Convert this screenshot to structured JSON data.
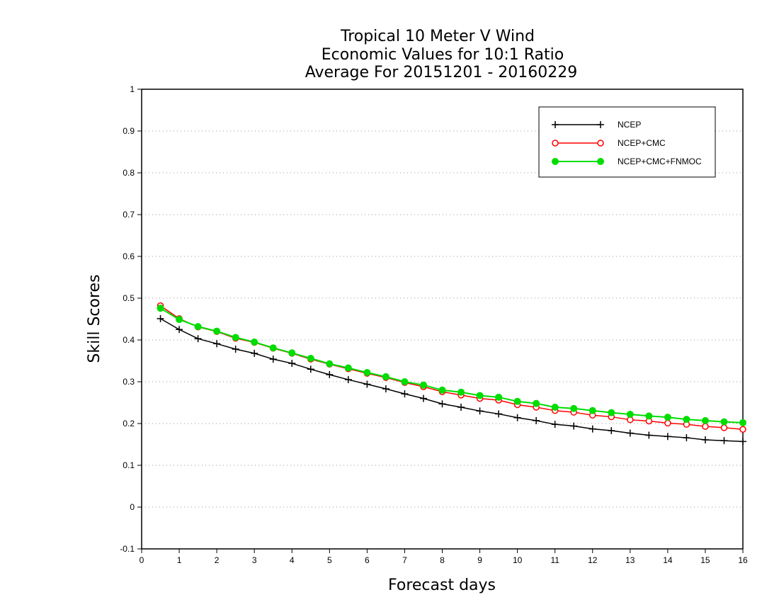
{
  "chart_data": {
    "type": "line",
    "title_lines": [
      "Tropical 10 Meter V Wind",
      "Economic Values for 10:1 Ratio",
      "Average For 20151201 - 20160229"
    ],
    "xlabel": "Forecast days",
    "ylabel": "Skill Scores",
    "xlim": [
      0,
      16
    ],
    "ylim": [
      -0.1,
      1
    ],
    "x_ticks": [
      "0",
      "1",
      "2",
      "3",
      "4",
      "5",
      "6",
      "7",
      "8",
      "9",
      "10",
      "11",
      "12",
      "13",
      "14",
      "15",
      "16"
    ],
    "y_ticks": [
      "1",
      "0.9",
      "0.8",
      "0.7",
      "0.6",
      "0.5",
      "0.4",
      "0.3",
      "0.2",
      "0.1",
      "0",
      "-0.1"
    ],
    "grid": "horizontal dotted",
    "legend_position": "top-right",
    "x": [
      0.5,
      1,
      1.5,
      2,
      2.5,
      3,
      3.5,
      4,
      4.5,
      5,
      5.5,
      6,
      6.5,
      7,
      7.5,
      8,
      8.5,
      9,
      9.5,
      10,
      10.5,
      11,
      11.5,
      12,
      12.5,
      13,
      13.5,
      14,
      14.5,
      15,
      15.5,
      16
    ],
    "series": [
      {
        "name": "NCEP",
        "color": "#000000",
        "marker": "plus",
        "values": [
          0.451,
          0.425,
          0.403,
          0.391,
          0.378,
          0.368,
          0.354,
          0.344,
          0.33,
          0.317,
          0.305,
          0.294,
          0.283,
          0.271,
          0.26,
          0.247,
          0.239,
          0.23,
          0.223,
          0.214,
          0.207,
          0.198,
          0.194,
          0.187,
          0.183,
          0.177,
          0.172,
          0.169,
          0.166,
          0.161,
          0.159,
          0.157
        ]
      },
      {
        "name": "NCEP+CMC",
        "color": "#ff0000",
        "marker": "open-circle",
        "values": [
          0.482,
          0.451,
          0.431,
          0.42,
          0.404,
          0.394,
          0.38,
          0.368,
          0.354,
          0.342,
          0.331,
          0.32,
          0.31,
          0.298,
          0.288,
          0.276,
          0.268,
          0.26,
          0.256,
          0.245,
          0.239,
          0.231,
          0.227,
          0.22,
          0.216,
          0.209,
          0.206,
          0.201,
          0.198,
          0.193,
          0.19,
          0.186
        ]
      },
      {
        "name": "NCEP+CMC+FNMOC",
        "color": "#00dd00",
        "marker": "filled-circle",
        "values": [
          0.476,
          0.449,
          0.432,
          0.421,
          0.406,
          0.395,
          0.381,
          0.369,
          0.356,
          0.343,
          0.333,
          0.322,
          0.312,
          0.3,
          0.292,
          0.28,
          0.275,
          0.267,
          0.263,
          0.253,
          0.248,
          0.239,
          0.236,
          0.231,
          0.226,
          0.222,
          0.218,
          0.215,
          0.21,
          0.207,
          0.204,
          0.202
        ]
      }
    ]
  }
}
